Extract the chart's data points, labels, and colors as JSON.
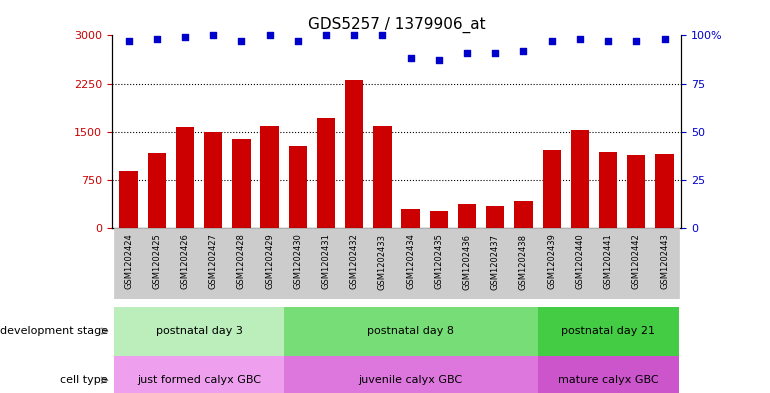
{
  "title": "GDS5257 / 1379906_at",
  "samples": [
    "GSM1202424",
    "GSM1202425",
    "GSM1202426",
    "GSM1202427",
    "GSM1202428",
    "GSM1202429",
    "GSM1202430",
    "GSM1202431",
    "GSM1202432",
    "GSM1202433",
    "GSM1202434",
    "GSM1202435",
    "GSM1202436",
    "GSM1202437",
    "GSM1202438",
    "GSM1202439",
    "GSM1202440",
    "GSM1202441",
    "GSM1202442",
    "GSM1202443"
  ],
  "counts": [
    880,
    1160,
    1580,
    1500,
    1380,
    1590,
    1280,
    1720,
    2310,
    1590,
    290,
    270,
    370,
    340,
    420,
    1210,
    1530,
    1180,
    1130,
    1150
  ],
  "percentile_ranks": [
    97,
    98,
    99,
    100,
    97,
    100,
    97,
    100,
    100,
    100,
    88,
    87,
    91,
    91,
    92,
    97,
    98,
    97,
    97,
    98
  ],
  "bar_color": "#cc0000",
  "dot_color": "#0000cc",
  "ylim_left": [
    0,
    3000
  ],
  "ylim_right": [
    0,
    100
  ],
  "yticks_left": [
    0,
    750,
    1500,
    2250,
    3000
  ],
  "yticks_right": [
    0,
    25,
    50,
    75,
    100
  ],
  "background_color": "#ffffff",
  "tick_color_left": "#cc0000",
  "tick_color_right": "#0000cc",
  "xtick_bg": "#cccccc",
  "dev_groups": [
    {
      "start": 0,
      "end": 6,
      "label": "postnatal day 3",
      "color": "#bbeebb"
    },
    {
      "start": 6,
      "end": 15,
      "label": "postnatal day 8",
      "color": "#77dd77"
    },
    {
      "start": 15,
      "end": 20,
      "label": "postnatal day 21",
      "color": "#44cc44"
    }
  ],
  "cell_groups": [
    {
      "start": 0,
      "end": 6,
      "label": "just formed calyx GBC",
      "color": "#eea0ee"
    },
    {
      "start": 6,
      "end": 15,
      "label": "juvenile calyx GBC",
      "color": "#dd77dd"
    },
    {
      "start": 15,
      "end": 20,
      "label": "mature calyx GBC",
      "color": "#cc55cc"
    }
  ]
}
